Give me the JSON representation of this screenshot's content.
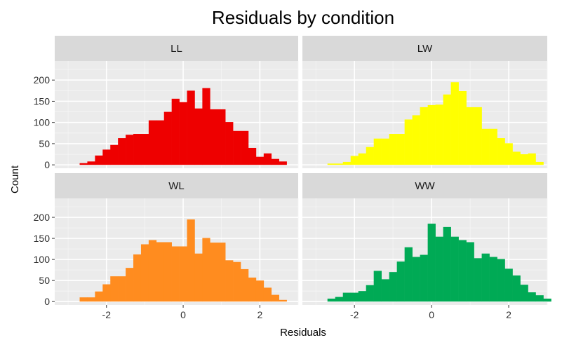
{
  "chart_data": {
    "type": "bar",
    "title": "Residuals by condition",
    "xlabel": "Residuals",
    "ylabel": "Count",
    "xlim": [
      -3.35,
      3.0
    ],
    "ylim": [
      -8,
      245
    ],
    "x_ticks": [
      -2,
      0,
      2
    ],
    "y_ticks": [
      0,
      50,
      100,
      150,
      200
    ],
    "bin_start": -2.7,
    "bin_width": 0.2,
    "grid": true,
    "legend": "none",
    "panels": [
      {
        "name": "LL",
        "color": "#EE0000",
        "values": [
          4,
          8,
          22,
          36,
          47,
          63,
          71,
          73,
          73,
          105,
          105,
          125,
          156,
          148,
          175,
          133,
          181,
          131,
          131,
          101,
          80,
          80,
          40,
          19,
          27,
          14,
          8
        ]
      },
      {
        "name": "LW",
        "color": "#FFFF00",
        "values": [
          3,
          3,
          7,
          21,
          27,
          42,
          62,
          62,
          73,
          73,
          107,
          117,
          136,
          141,
          142,
          166,
          195,
          174,
          136,
          136,
          85,
          85,
          63,
          51,
          31,
          25,
          27,
          7
        ]
      },
      {
        "name": "WL",
        "color": "#FF8C1F",
        "values": [
          10,
          10,
          24,
          41,
          60,
          60,
          80,
          112,
          136,
          146,
          141,
          141,
          131,
          131,
          195,
          114,
          151,
          140,
          140,
          98,
          94,
          77,
          57,
          50,
          33,
          16,
          4
        ]
      },
      {
        "name": "WW",
        "color": "#00AA55",
        "values": [
          7,
          11,
          21,
          21,
          25,
          39,
          73,
          53,
          70,
          95,
          129,
          106,
          111,
          185,
          154,
          177,
          154,
          146,
          141,
          103,
          114,
          106,
          101,
          78,
          62,
          40,
          22,
          15,
          7
        ]
      }
    ]
  }
}
